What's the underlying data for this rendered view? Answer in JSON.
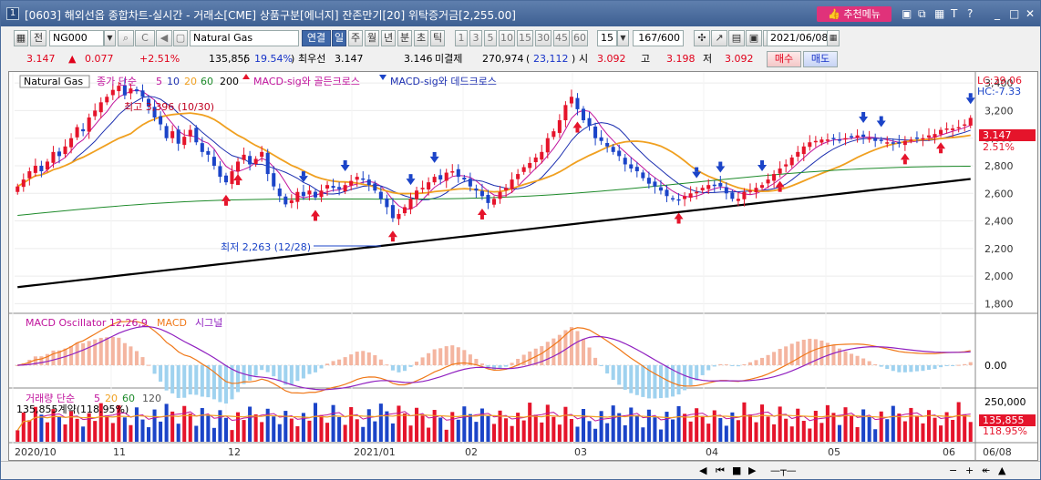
{
  "window": {
    "number": "1",
    "title": "[0603] 해외선옵 종합차트-실시간 - 거래소[CME] 상품구분[에너지] 잔존만기[20] 위탁증거금[2,255.00]",
    "recommend_menu": "추천메뉴"
  },
  "toolbar": {
    "all_label": "전",
    "code": "NG000",
    "name": "Natural Gas",
    "link_label": "연결",
    "periods": [
      "일",
      "주",
      "월",
      "년",
      "분",
      "초",
      "틱"
    ],
    "active_period": "일",
    "intervals": [
      "1",
      "3",
      "5",
      "10",
      "15",
      "30",
      "45",
      "60"
    ],
    "interval_value": "15",
    "count": "167/600",
    "date": "2021/06/08"
  },
  "quote": {
    "price": "3.147",
    "change": "0.077",
    "change_pct": "+2.51%",
    "volume": "135,855",
    "volume_pct": "19.54%",
    "best_bid_label": "최우선",
    "best_bid": "3.147",
    "ask": "3.146",
    "open_interest_label": "미결제",
    "open_interest": "270,974",
    "oi_change": "23,112",
    "open_label": "시",
    "open": "3.092",
    "high_label": "고",
    "high": "3.198",
    "low_label": "저",
    "low": "3.092",
    "buy_label": "매수",
    "sell_label": "매도"
  },
  "legend": {
    "symbol": "Natural Gas",
    "ma_label": "종가 단순",
    "ma_periods": [
      "5",
      "10",
      "20",
      "60",
      "200"
    ],
    "golden_cross": "MACD-sig와 골든크로스",
    "dead_cross": "MACD-sig와 데드크로스",
    "lc": "LC:39.06",
    "hc": "HC:-7.33",
    "high_note": "최고 3,396 (10/30)",
    "low_note": "최저 2,263 (12/28)",
    "price_tag": "3.147",
    "pct_tag": "2.51%"
  },
  "macd_panel": {
    "title": "MACD Oscillator 12,26,9",
    "macd_label": "MACD",
    "signal_label": "시그널",
    "zero_label": "0.00"
  },
  "volume_panel": {
    "title": "거래량 단순",
    "ma_periods": [
      "5",
      "20",
      "60",
      "120"
    ],
    "info": "135,855계약(118.95%)",
    "axis_label": "250,000",
    "tag_value": "135,855",
    "tag_pct": "118.95%"
  },
  "chart_data": {
    "type": "candlestick",
    "yticks": [
      "3,400",
      "3,200",
      "3,000",
      "2,800",
      "2,600",
      "2,400",
      "2,200",
      "2,000",
      "1,800"
    ],
    "ylim": [
      1750,
      3480
    ],
    "x_labels": [
      "2020/10",
      "11",
      "12",
      "2021/01",
      "02",
      "03",
      "04",
      "05",
      "06",
      "06/08"
    ],
    "colors": {
      "up": "#e5142b",
      "down": "#1b44c8",
      "ma5": "#c0139c",
      "ma10": "#1c2fb0",
      "ma20": "#f0a020",
      "ma60": "#1d8a2a",
      "ma200": "#000000"
    },
    "closes": [
      2650,
      2700,
      2760,
      2800,
      2760,
      2830,
      2900,
      2870,
      2940,
      3000,
      3080,
      3050,
      3150,
      3200,
      3260,
      3300,
      3350,
      3380,
      3310,
      3360,
      3340,
      3300,
      3230,
      3150,
      3100,
      3000,
      3050,
      2960,
      3010,
      3060,
      2970,
      2900,
      2880,
      2800,
      2720,
      2680,
      2760,
      2830,
      2880,
      2810,
      2850,
      2900,
      2740,
      2650,
      2580,
      2520,
      2550,
      2610,
      2580,
      2620,
      2570,
      2620,
      2660,
      2640,
      2630,
      2660,
      2690,
      2720,
      2700,
      2660,
      2620,
      2560,
      2500,
      2420,
      2450,
      2500,
      2560,
      2620,
      2640,
      2680,
      2720,
      2700,
      2750,
      2760,
      2720,
      2700,
      2650,
      2620,
      2580,
      2530,
      2560,
      2610,
      2640,
      2700,
      2740,
      2790,
      2820,
      2860,
      2900,
      3000,
      3050,
      3130,
      3240,
      3300,
      3210,
      3130,
      3090,
      3000,
      2980,
      2940,
      2900,
      2870,
      2810,
      2780,
      2760,
      2710,
      2670,
      2650,
      2620,
      2580,
      2560,
      2550,
      2580,
      2600,
      2610,
      2640,
      2660,
      2660,
      2650,
      2600,
      2560,
      2560,
      2610,
      2620,
      2640,
      2660,
      2700,
      2740,
      2780,
      2810,
      2860,
      2900,
      2940,
      2970,
      2980,
      2990,
      2990,
      3000,
      2990,
      3000,
      3010,
      3020,
      3010,
      3000,
      2980,
      2980,
      2970,
      2960,
      2960,
      2980,
      2990,
      3000,
      3000,
      3020,
      3030,
      3060,
      3070,
      3070,
      3080,
      3100,
      3147
    ],
    "macd_series": [
      "MACD",
      "시그널"
    ],
    "volume_max": 300000
  }
}
